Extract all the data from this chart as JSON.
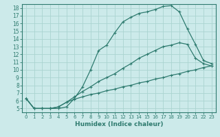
{
  "xlabel": "Humidex (Indice chaleur)",
  "bg_color": "#cceaea",
  "line_color": "#2d7a6e",
  "grid_color": "#aad4d0",
  "xlim": [
    -0.5,
    23.5
  ],
  "ylim": [
    4.5,
    18.5
  ],
  "xticks": [
    0,
    1,
    2,
    3,
    4,
    5,
    6,
    7,
    8,
    9,
    10,
    11,
    12,
    13,
    14,
    15,
    16,
    17,
    18,
    19,
    20,
    21,
    22,
    23
  ],
  "yticks": [
    5,
    6,
    7,
    8,
    9,
    10,
    11,
    12,
    13,
    14,
    15,
    16,
    17,
    18
  ],
  "curve1_x": [
    0,
    1,
    2,
    3,
    4,
    5,
    6,
    7,
    8,
    9,
    10,
    11,
    12,
    13,
    14,
    15,
    16,
    17,
    18,
    19,
    20,
    21,
    22,
    23
  ],
  "curve1_y": [
    6.3,
    5.0,
    5.0,
    5.0,
    5.0,
    5.2,
    6.3,
    7.8,
    10.0,
    12.5,
    13.2,
    14.8,
    16.2,
    16.8,
    17.3,
    17.5,
    17.8,
    18.2,
    18.3,
    17.5,
    15.3,
    13.3,
    11.2,
    10.8
  ],
  "curve2_x": [
    0,
    1,
    2,
    3,
    4,
    5,
    6,
    7,
    8,
    9,
    10,
    11,
    12,
    13,
    14,
    15,
    16,
    17,
    18,
    19,
    20,
    21,
    22,
    23
  ],
  "curve2_y": [
    6.3,
    5.0,
    5.0,
    5.0,
    5.2,
    5.8,
    6.5,
    7.2,
    7.8,
    8.5,
    9.0,
    9.5,
    10.2,
    10.8,
    11.5,
    12.0,
    12.5,
    13.0,
    13.2,
    13.5,
    13.3,
    11.5,
    10.8,
    10.5
  ],
  "curve3_x": [
    0,
    1,
    2,
    3,
    4,
    5,
    6,
    7,
    8,
    9,
    10,
    11,
    12,
    13,
    14,
    15,
    16,
    17,
    18,
    19,
    20,
    21,
    22,
    23
  ],
  "curve3_y": [
    6.3,
    5.0,
    5.0,
    5.0,
    5.2,
    5.8,
    6.2,
    6.5,
    6.8,
    7.0,
    7.3,
    7.5,
    7.8,
    8.0,
    8.3,
    8.5,
    8.8,
    9.0,
    9.3,
    9.5,
    9.8,
    10.0,
    10.3,
    10.5
  ]
}
